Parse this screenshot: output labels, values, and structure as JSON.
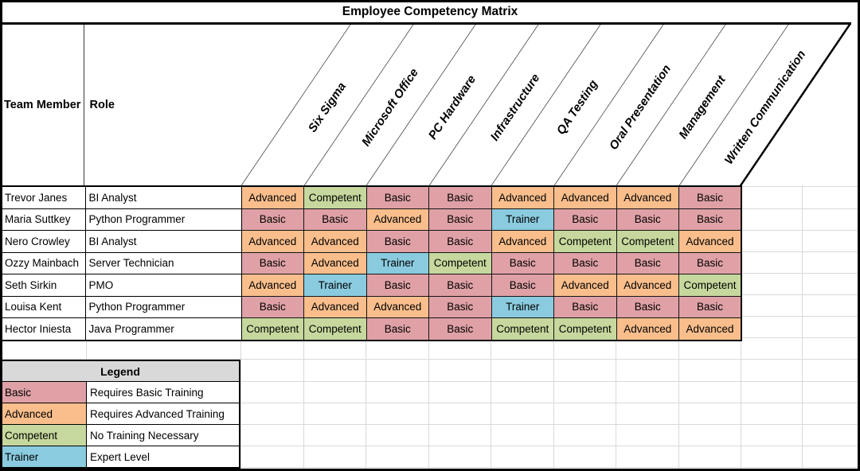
{
  "title": "Employee Competency Matrix",
  "columns": {
    "team_member": "Team Member",
    "role": "Role"
  },
  "skills": [
    "Six Sigma",
    "Microsoft Office",
    "PC Hardware",
    "Infrastructure",
    "QA Testing",
    "Oral Presentation",
    "Management",
    "Written Communication"
  ],
  "rows": [
    {
      "name": "Trevor Janes",
      "role": "BI Analyst",
      "ratings": [
        "Advanced",
        "Competent",
        "Basic",
        "Basic",
        "Advanced",
        "Advanced",
        "Advanced",
        "Basic"
      ]
    },
    {
      "name": "Maria Suttkey",
      "role": "Python Programmer",
      "ratings": [
        "Basic",
        "Basic",
        "Advanced",
        "Basic",
        "Trainer",
        "Basic",
        "Basic",
        "Basic"
      ]
    },
    {
      "name": "Nero Crowley",
      "role": "BI Analyst",
      "ratings": [
        "Advanced",
        "Advanced",
        "Basic",
        "Basic",
        "Advanced",
        "Competent",
        "Competent",
        "Advanced"
      ]
    },
    {
      "name": "Ozzy Mainbach",
      "role": "Server Technician",
      "ratings": [
        "Basic",
        "Advanced",
        "Trainer",
        "Competent",
        "Basic",
        "Basic",
        "Basic",
        "Basic"
      ]
    },
    {
      "name": "Seth Sirkin",
      "role": "PMO",
      "ratings": [
        "Advanced",
        "Trainer",
        "Basic",
        "Basic",
        "Basic",
        "Advanced",
        "Advanced",
        "Competent"
      ]
    },
    {
      "name": "Louisa Kent",
      "role": "Python Programmer",
      "ratings": [
        "Basic",
        "Advanced",
        "Advanced",
        "Basic",
        "Trainer",
        "Basic",
        "Basic",
        "Basic"
      ]
    },
    {
      "name": "Hector Iniesta",
      "role": "Java Programmer",
      "ratings": [
        "Competent",
        "Competent",
        "Basic",
        "Basic",
        "Competent",
        "Competent",
        "Advanced",
        "Advanced"
      ]
    }
  ],
  "legend": {
    "title": "Legend",
    "entries": [
      {
        "level": "Basic",
        "description": "Requires Basic Training"
      },
      {
        "level": "Advanced",
        "description": "Requires Advanced Training"
      },
      {
        "level": "Competent",
        "description": "No Training Necessary"
      },
      {
        "level": "Trainer",
        "description": "Expert Level"
      }
    ]
  },
  "colors": {
    "Basic": "#DFA1A6",
    "Advanced": "#F9BE8C",
    "Competent": "#C6D89D",
    "Trainer": "#8ACBDF",
    "legend_header": "#D9D9D9"
  }
}
